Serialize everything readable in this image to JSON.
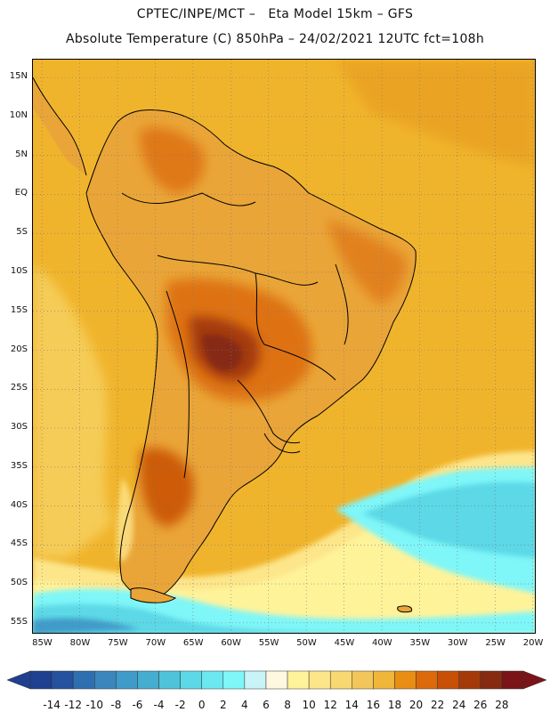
{
  "header": {
    "line1": "CPTEC/INPE/MCT –   Eta Model 15km – GFS",
    "line2": "Absolute Temperature (C) 850hPa – 24/02/2021 12UTC fct=108h"
  },
  "axes": {
    "lat_labels": [
      "15N",
      "10N",
      "5N",
      "EQ",
      "5S",
      "10S",
      "15S",
      "20S",
      "25S",
      "30S",
      "35S",
      "40S",
      "45S",
      "50S",
      "55S"
    ],
    "lon_labels": [
      "85W",
      "80W",
      "75W",
      "70W",
      "65W",
      "60W",
      "55W",
      "50W",
      "45W",
      "40W",
      "35W",
      "30W",
      "25W",
      "20W"
    ],
    "lat_range": [
      15,
      -55
    ],
    "lon_range": [
      -85,
      -20
    ],
    "grid": "dotted"
  },
  "colorbar": {
    "labels": [
      "-14",
      "-12",
      "-10",
      "-8",
      "-6",
      "-4",
      "-2",
      "0",
      "2",
      "4",
      "6",
      "8",
      "10",
      "12",
      "14",
      "16",
      "18",
      "20",
      "22",
      "24",
      "26",
      "28"
    ],
    "colors": [
      "#1f3f8f",
      "#25529f",
      "#2f6fb0",
      "#3a86bd",
      "#3f9bc9",
      "#45adcf",
      "#4fc3da",
      "#5cd8e6",
      "#6be8f0",
      "#7ff6f8",
      "#c8f4f8",
      "#fff8e0",
      "#fff39a",
      "#fde58a",
      "#f8d870",
      "#f2c65a",
      "#efb63a",
      "#e98d14",
      "#dc6a0a",
      "#c84f06",
      "#a43a0a",
      "#862a12",
      "#7a1418"
    ]
  },
  "map": {
    "ocean_color": "#f0b42c",
    "cold_water_color": "#5cd8e6",
    "land_base_color": "#eaa538",
    "hot_core_color": "#8a2e10"
  }
}
